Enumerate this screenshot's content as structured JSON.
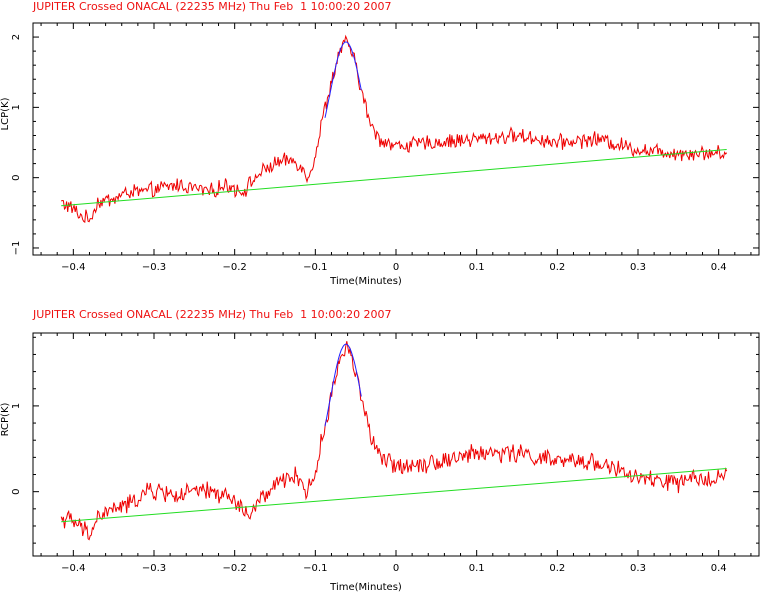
{
  "chart_data": [
    {
      "type": "line",
      "title": "JUPITER Crossed ONACAL (22235 MHz) Thu Feb  1 10:00:20 2007",
      "xlabel": "Time(Minutes)",
      "ylabel": "LCP(K)",
      "xlim": [
        -0.45,
        0.45
      ],
      "ylim": [
        -1.1,
        2.2
      ],
      "x_ticks": [
        -0.4,
        -0.3,
        -0.2,
        -0.1,
        0,
        0.1,
        0.2,
        0.3,
        0.4
      ],
      "x_tick_labels": [
        "−0.4",
        "−0.3",
        "−0.2",
        "−0.1",
        "0",
        "0.1",
        "0.2",
        "0.3",
        "0.4"
      ],
      "y_ticks": [
        -1,
        0,
        1,
        2
      ],
      "y_tick_labels": [
        "−1",
        "0",
        "1",
        "2"
      ],
      "grid": false,
      "series": [
        {
          "color": "#ee0000",
          "x_range": [
            -0.415,
            0.41
          ],
          "points": [
            [
              -0.415,
              -0.35
            ],
            [
              -0.4,
              -0.45
            ],
            [
              -0.39,
              -0.55
            ],
            [
              -0.38,
              -0.6
            ],
            [
              -0.37,
              -0.35
            ],
            [
              -0.35,
              -0.3
            ],
            [
              -0.33,
              -0.2
            ],
            [
              -0.31,
              -0.2
            ],
            [
              -0.29,
              -0.15
            ],
            [
              -0.27,
              -0.1
            ],
            [
              -0.25,
              -0.15
            ],
            [
              -0.23,
              -0.2
            ],
            [
              -0.21,
              -0.1
            ],
            [
              -0.19,
              -0.2
            ],
            [
              -0.17,
              0.05
            ],
            [
              -0.15,
              0.2
            ],
            [
              -0.13,
              0.25
            ],
            [
              -0.12,
              0.2
            ],
            [
              -0.11,
              0.0
            ],
            [
              -0.1,
              0.3
            ],
            [
              -0.09,
              0.9
            ],
            [
              -0.08,
              1.35
            ],
            [
              -0.07,
              1.8
            ],
            [
              -0.06,
              1.95
            ],
            [
              -0.05,
              1.6
            ],
            [
              -0.04,
              1.1
            ],
            [
              -0.03,
              0.7
            ],
            [
              -0.02,
              0.55
            ],
            [
              0.0,
              0.45
            ],
            [
              0.05,
              0.5
            ],
            [
              0.1,
              0.55
            ],
            [
              0.15,
              0.6
            ],
            [
              0.2,
              0.5
            ],
            [
              0.25,
              0.55
            ],
            [
              0.3,
              0.4
            ],
            [
              0.35,
              0.35
            ],
            [
              0.41,
              0.35
            ]
          ],
          "noise": 0.09
        },
        {
          "color": "#2222ff",
          "x_range": [
            -0.088,
            -0.043
          ],
          "peak_center": -0.062,
          "peak_value": 1.93,
          "peak_width": 0.02,
          "baseline_at_peak": 0.04
        },
        {
          "color": "#22dd22",
          "x": [
            -0.415,
            0.41
          ],
          "y": [
            -0.4,
            0.4
          ]
        }
      ]
    },
    {
      "type": "line",
      "title": "JUPITER Crossed ONACAL (22235 MHz) Thu Feb  1 10:00:20 2007",
      "xlabel": "Time(Minutes)",
      "ylabel": "RCP(K)",
      "xlim": [
        -0.45,
        0.45
      ],
      "ylim": [
        -0.75,
        1.85
      ],
      "x_ticks": [
        -0.4,
        -0.3,
        -0.2,
        -0.1,
        0,
        0.1,
        0.2,
        0.3,
        0.4
      ],
      "x_tick_labels": [
        "−0.4",
        "−0.3",
        "−0.2",
        "−0.1",
        "0",
        "0.1",
        "0.2",
        "0.3",
        "0.4"
      ],
      "y_ticks": [
        0,
        1
      ],
      "y_tick_labels": [
        "0",
        "1"
      ],
      "grid": false,
      "series": [
        {
          "color": "#ee0000",
          "x_range": [
            -0.415,
            0.41
          ],
          "points": [
            [
              -0.415,
              -0.3
            ],
            [
              -0.4,
              -0.35
            ],
            [
              -0.38,
              -0.5
            ],
            [
              -0.37,
              -0.3
            ],
            [
              -0.35,
              -0.2
            ],
            [
              -0.33,
              -0.15
            ],
            [
              -0.31,
              0.0
            ],
            [
              -0.29,
              0.0
            ],
            [
              -0.27,
              -0.05
            ],
            [
              -0.25,
              0.0
            ],
            [
              -0.23,
              0.0
            ],
            [
              -0.21,
              -0.05
            ],
            [
              -0.19,
              -0.2
            ],
            [
              -0.18,
              -0.3
            ],
            [
              -0.17,
              -0.1
            ],
            [
              -0.15,
              0.05
            ],
            [
              -0.13,
              0.2
            ],
            [
              -0.12,
              0.15
            ],
            [
              -0.11,
              0.0
            ],
            [
              -0.1,
              0.2
            ],
            [
              -0.09,
              0.7
            ],
            [
              -0.08,
              1.1
            ],
            [
              -0.07,
              1.55
            ],
            [
              -0.06,
              1.72
            ],
            [
              -0.05,
              1.4
            ],
            [
              -0.04,
              1.0
            ],
            [
              -0.03,
              0.6
            ],
            [
              -0.02,
              0.4
            ],
            [
              0.0,
              0.3
            ],
            [
              0.05,
              0.35
            ],
            [
              0.1,
              0.45
            ],
            [
              0.15,
              0.45
            ],
            [
              0.2,
              0.35
            ],
            [
              0.25,
              0.35
            ],
            [
              0.3,
              0.15
            ],
            [
              0.35,
              0.1
            ],
            [
              0.41,
              0.2
            ]
          ],
          "noise": 0.09
        },
        {
          "color": "#2222ff",
          "x_range": [
            -0.088,
            -0.043
          ],
          "peak_center": -0.062,
          "peak_value": 1.72,
          "peak_width": 0.02,
          "baseline_at_peak": 0.04
        },
        {
          "color": "#22dd22",
          "x": [
            -0.415,
            0.41
          ],
          "y": [
            -0.35,
            0.27
          ]
        }
      ]
    }
  ]
}
